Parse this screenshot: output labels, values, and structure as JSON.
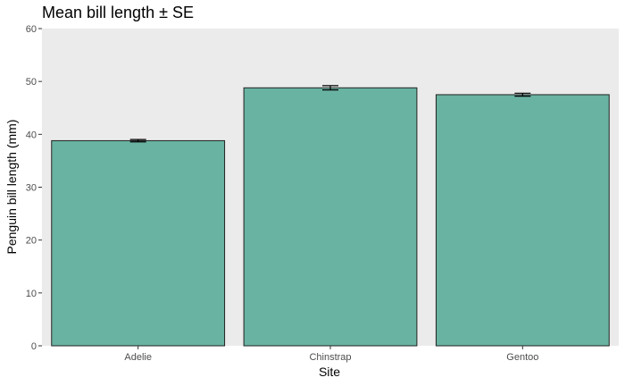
{
  "chart_data": {
    "type": "bar",
    "title": "Mean bill length ± SE",
    "xlabel": "Site",
    "ylabel": "Penguin bill length (mm)",
    "categories": [
      "Adelie",
      "Chinstrap",
      "Gentoo"
    ],
    "values": [
      38.8,
      48.8,
      47.5
    ],
    "errors": [
      0.22,
      0.4,
      0.28
    ],
    "ylim": [
      0,
      60
    ],
    "yticks": [
      0,
      10,
      20,
      30,
      40,
      50,
      60
    ],
    "grid": false,
    "bar_color": "#69b3a2",
    "panel_color": "#ebebeb"
  }
}
